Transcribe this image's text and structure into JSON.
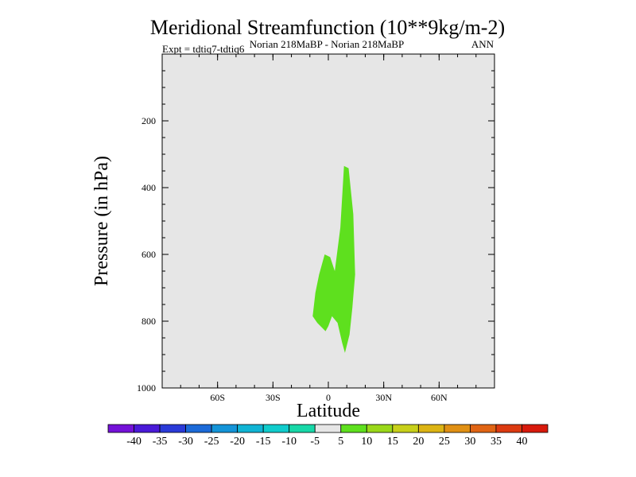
{
  "chart_data": {
    "type": "contour",
    "title": "Meridional Streamfunction (10**9kg/m-2)",
    "subtitle_center": "Norian   218MaBP - Norian   218MaBP",
    "subtitle_right": "ANN",
    "subtitle_left": "Expt = tdtiq7-tdtiq6",
    "xlabel": "Latitude",
    "ylabel": "Pressure (in hPa)",
    "xlim": [
      -90,
      90
    ],
    "ylim": [
      1000,
      0
    ],
    "x_ticks": [
      {
        "value": -60,
        "label": "60S"
      },
      {
        "value": -30,
        "label": "30S"
      },
      {
        "value": 0,
        "label": "0"
      },
      {
        "value": 30,
        "label": "30N"
      },
      {
        "value": 60,
        "label": "60N"
      }
    ],
    "y_ticks": [
      {
        "value": 200,
        "label": "200"
      },
      {
        "value": 400,
        "label": "400"
      },
      {
        "value": 600,
        "label": "600"
      },
      {
        "value": 800,
        "label": "800"
      },
      {
        "value": 1000,
        "label": "1000"
      }
    ],
    "background_color": "#e6e6e6",
    "filled_regions": [
      {
        "name": "5 to 10 band",
        "color": "#5ee01e",
        "points": [
          [
            8.5,
            335
          ],
          [
            11,
            342
          ],
          [
            13.5,
            480
          ],
          [
            14.5,
            660
          ],
          [
            13,
            760
          ],
          [
            11.5,
            840
          ],
          [
            9,
            895
          ],
          [
            7.5,
            865
          ],
          [
            5,
            805
          ],
          [
            2,
            785
          ],
          [
            0,
            815
          ],
          [
            -1.5,
            830
          ],
          [
            -6,
            805
          ],
          [
            -8.5,
            785
          ],
          [
            -7,
            715
          ],
          [
            -5,
            660
          ],
          [
            -2,
            600
          ],
          [
            1,
            608
          ],
          [
            3.5,
            650
          ],
          [
            6.5,
            520
          ]
        ]
      }
    ],
    "colorbar": {
      "labels": [
        "-40",
        "-35",
        "-30",
        "-25",
        "-20",
        "-15",
        "-10",
        "-5",
        "5",
        "10",
        "15",
        "20",
        "25",
        "30",
        "35",
        "40"
      ],
      "colors": [
        "#7412d8",
        "#4a1ad8",
        "#2a3ad8",
        "#1c6ad8",
        "#1494d8",
        "#10b4d4",
        "#10cccc",
        "#18d8a8",
        "#e6e6e6",
        "#5ee01e",
        "#9ad81a",
        "#c8d01a",
        "#dcb414",
        "#e09014",
        "#e06414",
        "#dc3a10",
        "#d81a0c"
      ]
    }
  }
}
